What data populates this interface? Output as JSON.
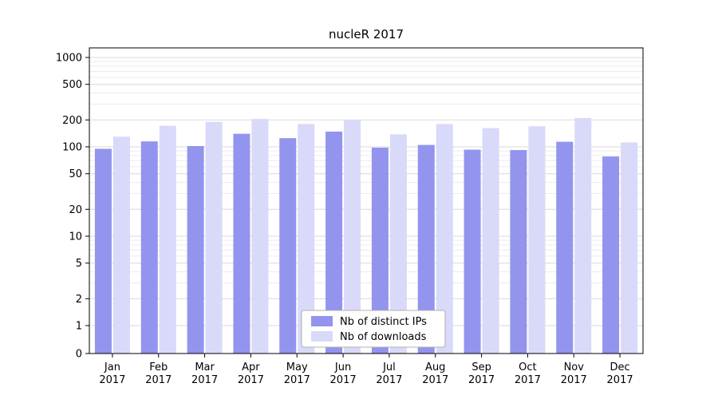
{
  "chart_data": {
    "type": "bar",
    "title": "nucleR 2017",
    "categories": [
      "Jan",
      "Feb",
      "Mar",
      "Apr",
      "May",
      "Jun",
      "Jul",
      "Aug",
      "Sep",
      "Oct",
      "Nov",
      "Dec"
    ],
    "year_label": "2017",
    "series": [
      {
        "name": "Nb of distinct IPs",
        "color": "#9394ee",
        "values": [
          95,
          115,
          102,
          140,
          125,
          148,
          98,
          105,
          93,
          92,
          114,
          78
        ]
      },
      {
        "name": "Nb of downloads",
        "color": "#d9d9f9",
        "values": [
          130,
          172,
          190,
          205,
          180,
          200,
          138,
          180,
          162,
          170,
          210,
          112
        ]
      }
    ],
    "y_ticks": [
      0,
      1,
      2,
      5,
      10,
      20,
      50,
      100,
      200,
      500,
      1000
    ],
    "y_scale": "symlog",
    "ylim": [
      0,
      1280
    ],
    "grid": true,
    "legend_position": "bottom-center",
    "colors": {
      "axis": "#000000",
      "grid_major": "#d8d8d8",
      "grid_minor": "#ececec",
      "legend_border": "#b0b0b0"
    }
  }
}
